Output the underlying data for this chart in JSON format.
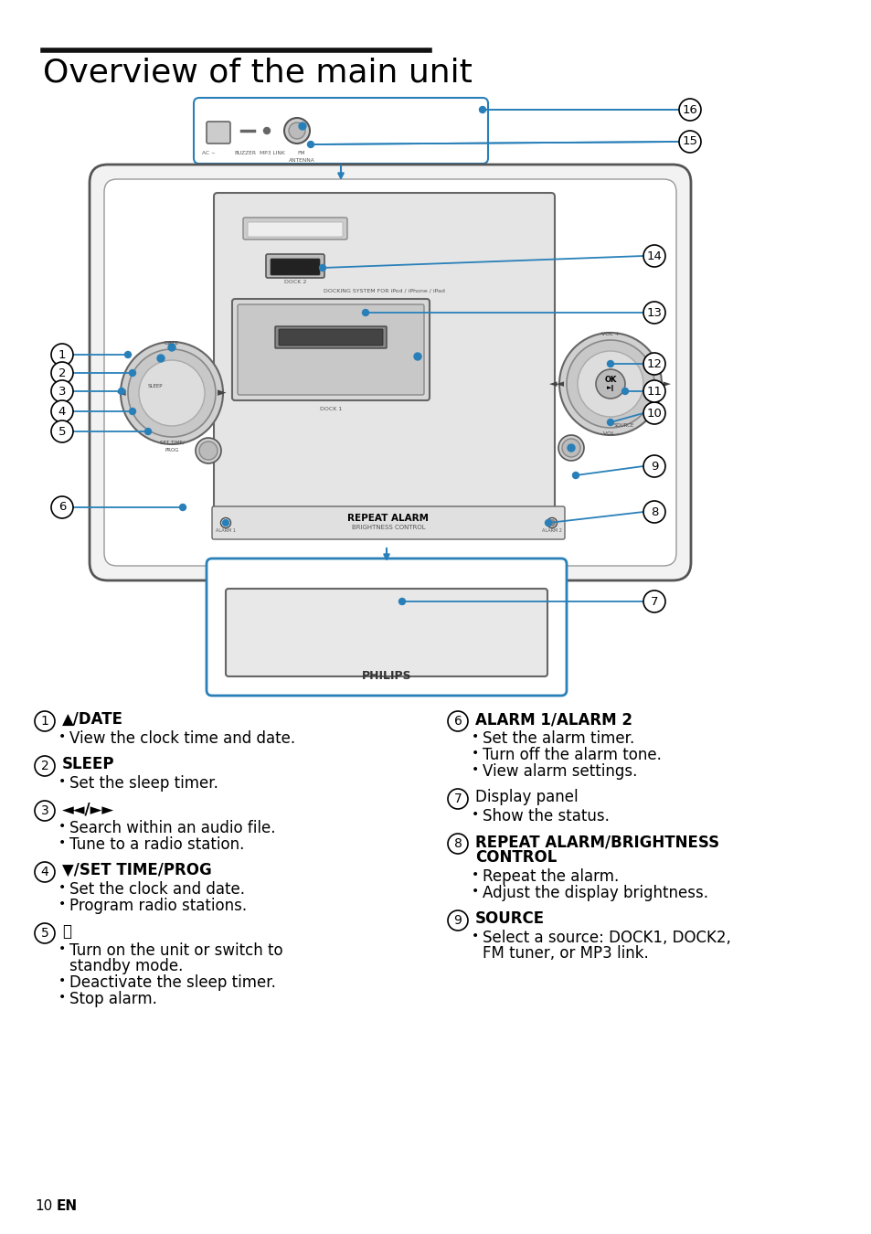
{
  "title": "Overview of the main unit",
  "title_fontsize": 26,
  "background_color": "#ffffff",
  "text_color": "#000000",
  "blue_color": "#2980b9",
  "page_number": "10",
  "page_lang": "EN",
  "sections_left": [
    {
      "num": "1",
      "heading": "▲/DATE",
      "heading_bold": true,
      "bullets": [
        "View the clock time and date."
      ]
    },
    {
      "num": "2",
      "heading": "SLEEP",
      "heading_bold": true,
      "bullets": [
        "Set the sleep timer."
      ]
    },
    {
      "num": "3",
      "heading": "◄◄/►►",
      "heading_bold": true,
      "bullets": [
        "Search within an audio file.",
        "Tune to a radio station."
      ]
    },
    {
      "num": "4",
      "heading": "▼/SET TIME/PROG",
      "heading_bold": true,
      "bullets": [
        "Set the clock and date.",
        "Program radio stations."
      ]
    },
    {
      "num": "5",
      "heading": "⏻",
      "heading_bold": false,
      "bullets": [
        "Turn on the unit or switch to\nstandby mode.",
        "Deactivate the sleep timer.",
        "Stop alarm."
      ]
    }
  ],
  "sections_right": [
    {
      "num": "6",
      "heading": "ALARM 1/ALARM 2",
      "heading_bold": true,
      "bullets": [
        "Set the alarm timer.",
        "Turn off the alarm tone.",
        "View alarm settings."
      ]
    },
    {
      "num": "7",
      "heading": "Display panel",
      "heading_bold": false,
      "bullets": [
        "Show the status."
      ]
    },
    {
      "num": "8",
      "heading": "REPEAT ALARM/BRIGHTNESS\nCONTROL",
      "heading_bold": true,
      "bullets": [
        "Repeat the alarm.",
        "Adjust the display brightness."
      ]
    },
    {
      "num": "9",
      "heading": "SOURCE",
      "heading_bold": true,
      "bullets": [
        "Select a source: DOCK1, DOCK2,\nFM tuner, or MP3 link."
      ]
    }
  ]
}
